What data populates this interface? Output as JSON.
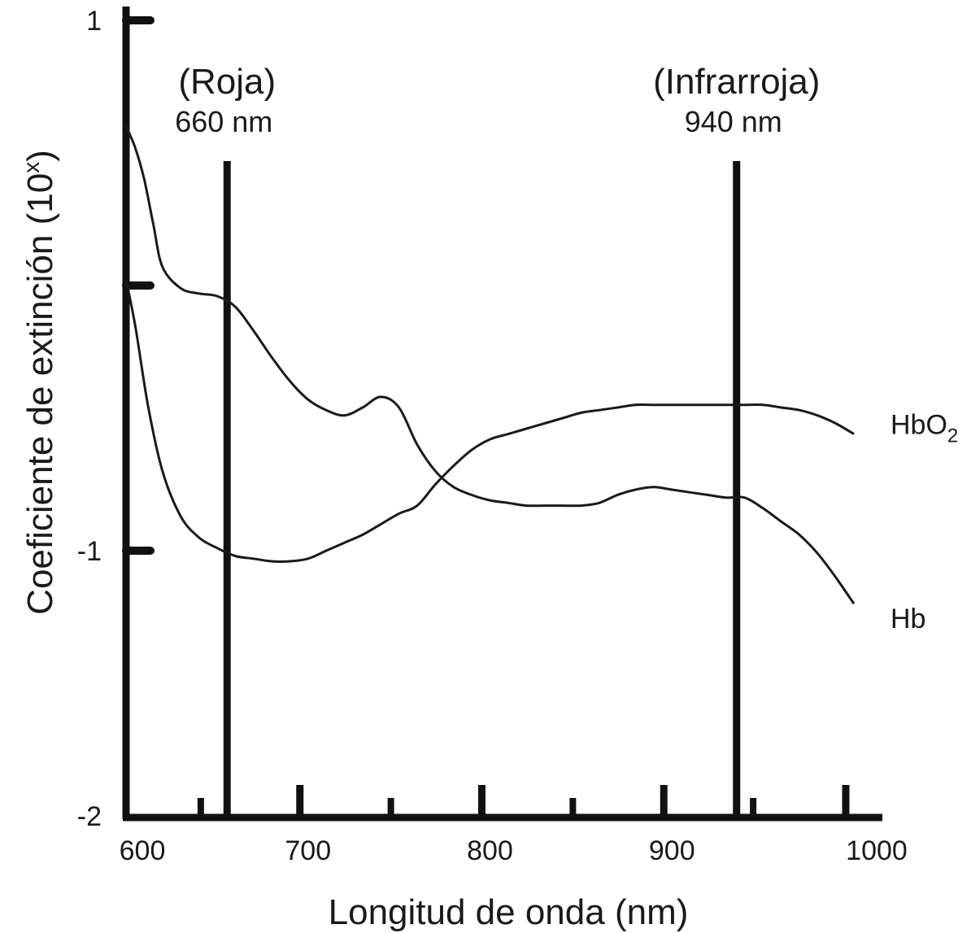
{
  "chart_data": {
    "type": "line",
    "xlabel": "Longitud de onda (nm)",
    "ylabel_base": "Coeficiente de extinción (10",
    "ylabel_sup": "x",
    "ylabel_close": ")",
    "xlim": [
      600,
      1000
    ],
    "ylim": [
      -2,
      1
    ],
    "x_ticks": [
      600,
      700,
      800,
      900,
      1000
    ],
    "x_minor_ticks": [
      650,
      750,
      850,
      950,
      1000
    ],
    "y_ticks": [
      1,
      0,
      -1,
      -2
    ],
    "y_tick_labels": [
      {
        "value": 1,
        "label": "1"
      },
      {
        "value": -1,
        "label": "-1"
      },
      {
        "value": -2,
        "label": "-2"
      }
    ],
    "markers": [
      {
        "x": 660,
        "label1": "(Roja)",
        "label2": "660 nm"
      },
      {
        "x": 940,
        "label1": "(Infrarroja)",
        "label2": "940 nm"
      }
    ],
    "series": [
      {
        "name": "HbO2",
        "label_base": "HbO",
        "label_sub": "2",
        "x": [
          600,
          605,
          612,
          620,
          630,
          640,
          650,
          660,
          670,
          680,
          690,
          700,
          710,
          720,
          730,
          740,
          750,
          760,
          770,
          780,
          790,
          800,
          810,
          820,
          830,
          840,
          850,
          860,
          870,
          880,
          890,
          900,
          910,
          920,
          930,
          940,
          950,
          960,
          970,
          980,
          990,
          1000
        ],
        "y": [
          0.02,
          -0.15,
          -0.45,
          -0.7,
          -0.87,
          -0.95,
          -0.99,
          -1.02,
          -1.03,
          -1.04,
          -1.04,
          -1.03,
          -1.0,
          -0.97,
          -0.94,
          -0.9,
          -0.86,
          -0.83,
          -0.75,
          -0.68,
          -0.62,
          -0.58,
          -0.56,
          -0.54,
          -0.52,
          -0.5,
          -0.48,
          -0.47,
          -0.46,
          -0.45,
          -0.45,
          -0.45,
          -0.45,
          -0.45,
          -0.45,
          -0.45,
          -0.45,
          -0.46,
          -0.47,
          -0.49,
          -0.52,
          -0.56
        ]
      },
      {
        "name": "Hb",
        "label_base": "Hb",
        "label_sub": "",
        "x": [
          600,
          605,
          610,
          615,
          620,
          630,
          640,
          650,
          660,
          670,
          680,
          690,
          700,
          710,
          720,
          730,
          740,
          750,
          760,
          770,
          780,
          790,
          800,
          810,
          820,
          830,
          840,
          850,
          860,
          870,
          880,
          890,
          900,
          910,
          920,
          930,
          940,
          950,
          960,
          970,
          980,
          990,
          1000
        ],
        "y": [
          0.6,
          0.52,
          0.4,
          0.23,
          0.07,
          -0.01,
          -0.03,
          -0.04,
          -0.08,
          -0.17,
          -0.27,
          -0.36,
          -0.43,
          -0.47,
          -0.49,
          -0.46,
          -0.42,
          -0.46,
          -0.6,
          -0.7,
          -0.76,
          -0.79,
          -0.81,
          -0.82,
          -0.83,
          -0.83,
          -0.83,
          -0.83,
          -0.82,
          -0.79,
          -0.77,
          -0.76,
          -0.77,
          -0.78,
          -0.79,
          -0.8,
          -0.8,
          -0.84,
          -0.89,
          -0.94,
          -1.01,
          -1.1,
          -1.2
        ]
      }
    ]
  }
}
